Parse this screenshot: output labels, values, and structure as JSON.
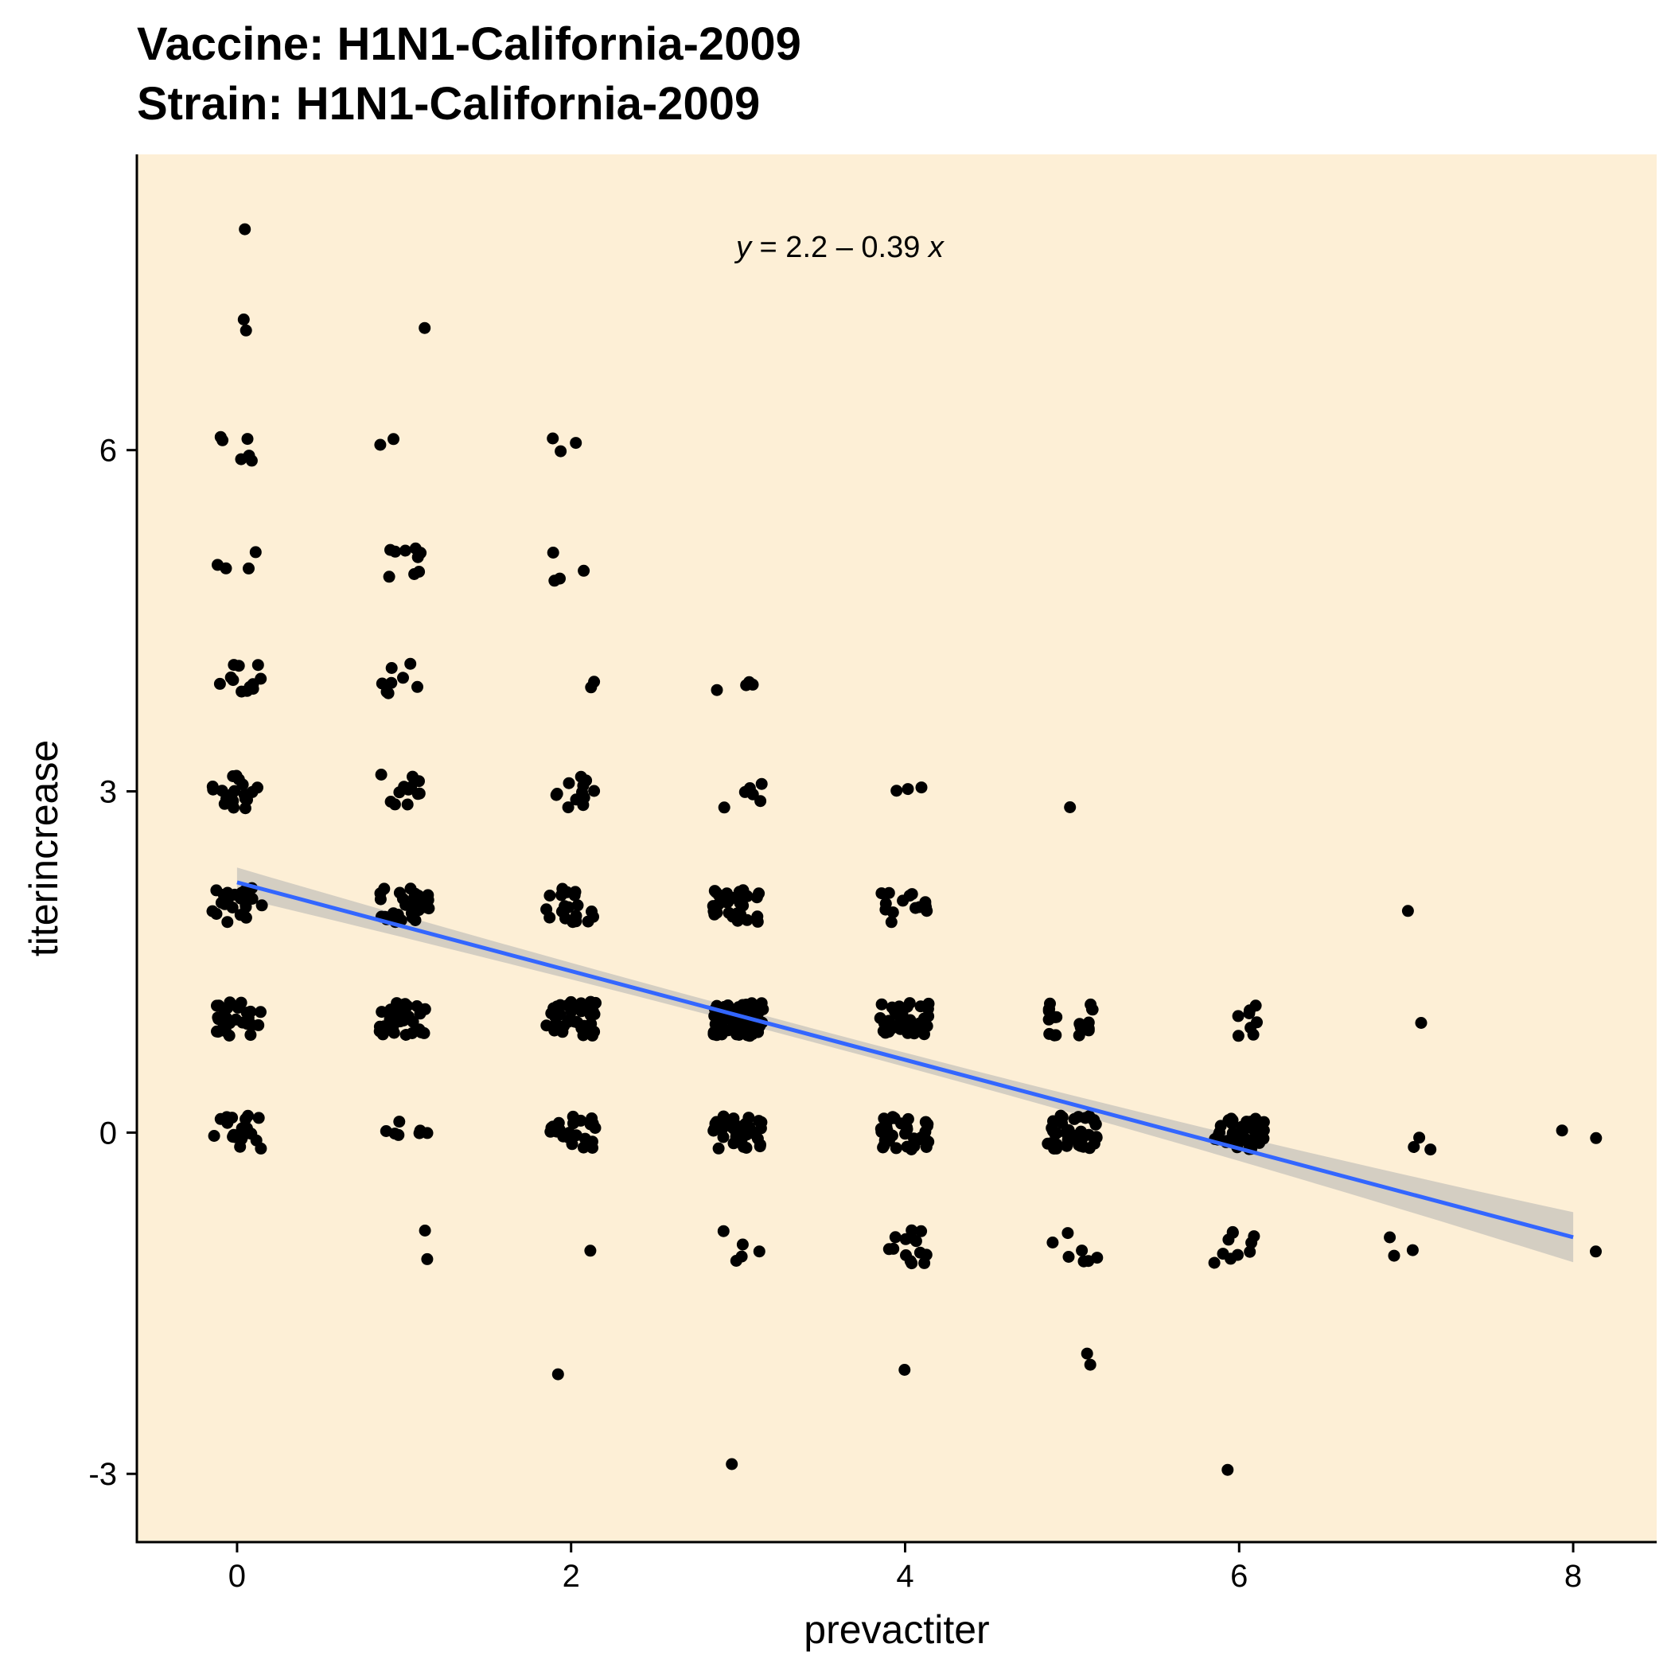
{
  "title_line1": "Vaccine: H1N1-California-2009",
  "title_line2": "Strain: H1N1-California-2009",
  "annotation": {
    "y_var": "y",
    "middle": " = 2.2 – 0.39 ",
    "x_var": "x"
  },
  "colors": {
    "panel_background": "#fdefd6",
    "points": "#000000",
    "fit_line": "#3366ff",
    "confidence_band": "#b3b3b3"
  },
  "chart_data": {
    "type": "scatter",
    "xlabel": "prevactiter",
    "ylabel": "titerincrease",
    "xlim": [
      -0.6,
      8.5
    ],
    "ylim": [
      -3.6,
      8.6
    ],
    "x_ticks": [
      0,
      2,
      4,
      6,
      8
    ],
    "x_tick_labels": [
      "0",
      "2",
      "4",
      "6",
      "8"
    ],
    "y_ticks": [
      -3,
      0,
      3,
      6
    ],
    "y_tick_labels": [
      "-3",
      "0",
      "3",
      "6"
    ],
    "grid": false,
    "regression": {
      "intercept": 2.2,
      "slope": -0.39,
      "x_range": [
        0,
        8
      ],
      "ci_half_width_at_ends": [
        0.13,
        0.22
      ],
      "ci_half_width_center": 0.06
    },
    "point_groups": [
      {
        "x": 0,
        "y": 8,
        "n": 1
      },
      {
        "x": 0,
        "y": 7,
        "n": 2
      },
      {
        "x": 0,
        "y": 6,
        "n": 6
      },
      {
        "x": 0,
        "y": 5,
        "n": 4
      },
      {
        "x": 0,
        "y": 4,
        "n": 12
      },
      {
        "x": 0,
        "y": 3,
        "n": 20
      },
      {
        "x": 0,
        "y": 2,
        "n": 25
      },
      {
        "x": 0,
        "y": 1,
        "n": 28
      },
      {
        "x": 0,
        "y": 0,
        "n": 20
      },
      {
        "x": 1,
        "y": 7,
        "n": 1
      },
      {
        "x": 1,
        "y": 6,
        "n": 2
      },
      {
        "x": 1,
        "y": 5,
        "n": 9
      },
      {
        "x": 1,
        "y": 4,
        "n": 8
      },
      {
        "x": 1,
        "y": 3,
        "n": 12
      },
      {
        "x": 1,
        "y": 2,
        "n": 30
      },
      {
        "x": 1,
        "y": 1,
        "n": 32
      },
      {
        "x": 1,
        "y": 0,
        "n": 7
      },
      {
        "x": 1,
        "y": -1,
        "n": 2
      },
      {
        "x": 2,
        "y": 6,
        "n": 3
      },
      {
        "x": 2,
        "y": 5,
        "n": 4
      },
      {
        "x": 2,
        "y": 4,
        "n": 2
      },
      {
        "x": 2,
        "y": 3,
        "n": 12
      },
      {
        "x": 2,
        "y": 2,
        "n": 22
      },
      {
        "x": 2,
        "y": 1,
        "n": 45
      },
      {
        "x": 2,
        "y": 0,
        "n": 24
      },
      {
        "x": 2,
        "y": -1,
        "n": 1
      },
      {
        "x": 2,
        "y": -2,
        "n": 1
      },
      {
        "x": 3,
        "y": 4,
        "n": 4
      },
      {
        "x": 3,
        "y": 3,
        "n": 6
      },
      {
        "x": 3,
        "y": 2,
        "n": 30
      },
      {
        "x": 3,
        "y": 1,
        "n": 80
      },
      {
        "x": 3,
        "y": 0,
        "n": 40
      },
      {
        "x": 3,
        "y": -1,
        "n": 5
      },
      {
        "x": 3,
        "y": -3,
        "n": 1
      },
      {
        "x": 4,
        "y": 3,
        "n": 3
      },
      {
        "x": 4,
        "y": 2,
        "n": 15
      },
      {
        "x": 4,
        "y": 1,
        "n": 40
      },
      {
        "x": 4,
        "y": 0,
        "n": 35
      },
      {
        "x": 4,
        "y": -1,
        "n": 14
      },
      {
        "x": 4,
        "y": -2,
        "n": 1
      },
      {
        "x": 5,
        "y": 3,
        "n": 1
      },
      {
        "x": 5,
        "y": 1,
        "n": 20
      },
      {
        "x": 5,
        "y": 0,
        "n": 45
      },
      {
        "x": 5,
        "y": -1,
        "n": 7
      },
      {
        "x": 5,
        "y": -2,
        "n": 2
      },
      {
        "x": 6,
        "y": 1,
        "n": 8
      },
      {
        "x": 6,
        "y": 0,
        "n": 40
      },
      {
        "x": 6,
        "y": -1,
        "n": 10
      },
      {
        "x": 6,
        "y": -3,
        "n": 1
      },
      {
        "x": 7,
        "y": 2,
        "n": 1
      },
      {
        "x": 7,
        "y": 1,
        "n": 1
      },
      {
        "x": 7,
        "y": 0,
        "n": 3
      },
      {
        "x": 7,
        "y": -1,
        "n": 3
      },
      {
        "x": 8,
        "y": 0,
        "n": 2
      },
      {
        "x": 8,
        "y": -1,
        "n": 1
      }
    ]
  }
}
